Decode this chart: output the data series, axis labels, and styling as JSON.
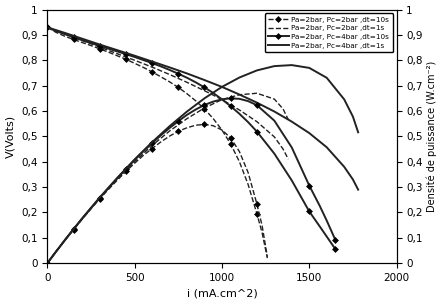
{
  "title": "",
  "ylabel_left": "V(Volts)",
  "ylabel_right": "Densité de puissance (W.cm⁻²)",
  "xlim": [
    0,
    2000
  ],
  "ylim": [
    0,
    1
  ],
  "xticks": [
    0,
    500,
    1000,
    1500,
    2000
  ],
  "yticks_left": [
    0,
    0.1,
    0.2,
    0.3,
    0.4,
    0.5,
    0.6,
    0.7,
    0.8,
    0.9,
    1
  ],
  "yticks_right": [
    0,
    0.1,
    0.2,
    0.3,
    0.4,
    0.5,
    0.6,
    0.7,
    0.8,
    0.9,
    1
  ],
  "series": [
    {
      "label": "Pa=2bar, Pc=2bar ,dt=10s",
      "linestyle": "--",
      "marker": "D",
      "color": "#222222",
      "linewidth": 1.0,
      "pol_x": [
        0,
        50,
        100,
        150,
        200,
        250,
        300,
        350,
        400,
        450,
        500,
        550,
        600,
        650,
        700,
        750,
        800,
        850,
        900,
        950,
        1000,
        1050,
        1100,
        1150,
        1200,
        1230,
        1260
      ],
      "pol_y": [
        0.93,
        0.91,
        0.895,
        0.882,
        0.87,
        0.858,
        0.845,
        0.832,
        0.818,
        0.804,
        0.788,
        0.772,
        0.754,
        0.735,
        0.715,
        0.693,
        0.668,
        0.64,
        0.608,
        0.57,
        0.525,
        0.47,
        0.4,
        0.31,
        0.195,
        0.12,
        0.02
      ],
      "pow_x": [
        0,
        50,
        100,
        150,
        200,
        250,
        300,
        350,
        400,
        450,
        500,
        550,
        600,
        650,
        700,
        750,
        800,
        850,
        900,
        950,
        1000,
        1050,
        1100,
        1150,
        1200,
        1230,
        1260
      ],
      "pow_y": [
        0,
        0.046,
        0.09,
        0.132,
        0.174,
        0.215,
        0.254,
        0.291,
        0.327,
        0.362,
        0.394,
        0.425,
        0.452,
        0.478,
        0.501,
        0.52,
        0.534,
        0.544,
        0.547,
        0.542,
        0.525,
        0.494,
        0.44,
        0.357,
        0.234,
        0.148,
        0.025
      ]
    },
    {
      "label": "Pa=2bar, Pc=2bar ,dt=1s",
      "linestyle": "--",
      "marker": null,
      "color": "#222222",
      "linewidth": 1.0,
      "pol_x": [
        0,
        100,
        200,
        300,
        400,
        500,
        600,
        700,
        800,
        900,
        1000,
        1100,
        1200,
        1300,
        1350,
        1380
      ],
      "pol_y": [
        0.93,
        0.905,
        0.878,
        0.852,
        0.826,
        0.8,
        0.773,
        0.744,
        0.713,
        0.68,
        0.645,
        0.604,
        0.558,
        0.498,
        0.45,
        0.41
      ],
      "pow_x": [
        0,
        100,
        200,
        300,
        400,
        500,
        600,
        700,
        800,
        900,
        1000,
        1100,
        1200,
        1300,
        1350,
        1380
      ],
      "pow_y": [
        0,
        0.091,
        0.176,
        0.256,
        0.33,
        0.4,
        0.464,
        0.521,
        0.57,
        0.612,
        0.645,
        0.664,
        0.67,
        0.647,
        0.608,
        0.566
      ]
    },
    {
      "label": "Pa=2bar, Pc=4bar ,dt=10s",
      "linestyle": "-",
      "marker": "D",
      "color": "#222222",
      "linewidth": 1.4,
      "pol_x": [
        0,
        50,
        100,
        150,
        200,
        250,
        300,
        350,
        400,
        450,
        500,
        550,
        600,
        650,
        700,
        750,
        800,
        850,
        900,
        950,
        1000,
        1050,
        1100,
        1150,
        1200,
        1300,
        1400,
        1500,
        1560,
        1600,
        1650
      ],
      "pol_y": [
        0.93,
        0.915,
        0.903,
        0.891,
        0.879,
        0.868,
        0.857,
        0.846,
        0.835,
        0.824,
        0.813,
        0.801,
        0.789,
        0.776,
        0.762,
        0.747,
        0.731,
        0.713,
        0.693,
        0.671,
        0.646,
        0.619,
        0.589,
        0.556,
        0.519,
        0.432,
        0.326,
        0.204,
        0.145,
        0.105,
        0.055
      ],
      "pow_x": [
        0,
        50,
        100,
        150,
        200,
        250,
        300,
        350,
        400,
        450,
        500,
        550,
        600,
        650,
        700,
        750,
        800,
        850,
        900,
        950,
        1000,
        1050,
        1100,
        1150,
        1200,
        1300,
        1400,
        1500,
        1560,
        1600,
        1650
      ],
      "pow_y": [
        0,
        0.046,
        0.09,
        0.134,
        0.176,
        0.217,
        0.257,
        0.296,
        0.334,
        0.371,
        0.407,
        0.441,
        0.473,
        0.504,
        0.533,
        0.56,
        0.585,
        0.606,
        0.624,
        0.637,
        0.646,
        0.65,
        0.648,
        0.639,
        0.623,
        0.562,
        0.456,
        0.306,
        0.226,
        0.168,
        0.091
      ]
    },
    {
      "label": "Pa=2bar, Pc=4bar ,dt=1s",
      "linestyle": "-",
      "marker": null,
      "color": "#222222",
      "linewidth": 1.4,
      "pol_x": [
        0,
        100,
        200,
        300,
        400,
        500,
        600,
        700,
        800,
        900,
        1000,
        1100,
        1200,
        1300,
        1400,
        1500,
        1600,
        1700,
        1750,
        1780
      ],
      "pol_y": [
        0.93,
        0.908,
        0.885,
        0.862,
        0.84,
        0.818,
        0.795,
        0.772,
        0.748,
        0.722,
        0.695,
        0.665,
        0.633,
        0.598,
        0.558,
        0.513,
        0.457,
        0.38,
        0.33,
        0.29
      ],
      "pow_x": [
        0,
        100,
        200,
        300,
        400,
        500,
        600,
        700,
        800,
        900,
        1000,
        1100,
        1200,
        1300,
        1400,
        1500,
        1600,
        1700,
        1750,
        1780
      ],
      "pow_y": [
        0,
        0.091,
        0.177,
        0.259,
        0.336,
        0.409,
        0.477,
        0.54,
        0.598,
        0.65,
        0.695,
        0.732,
        0.76,
        0.777,
        0.781,
        0.77,
        0.731,
        0.646,
        0.578,
        0.516
      ]
    }
  ]
}
